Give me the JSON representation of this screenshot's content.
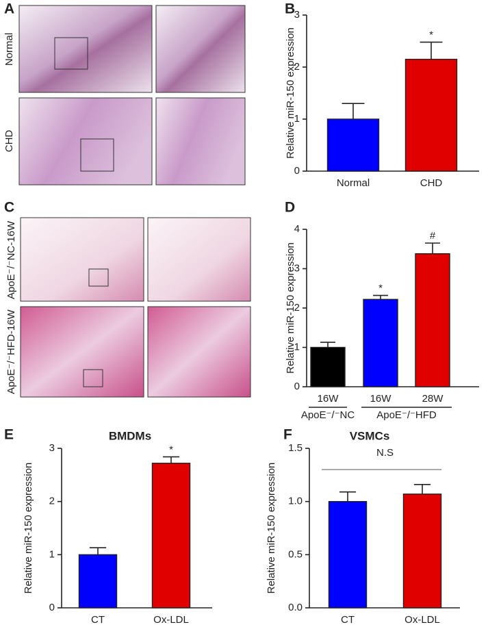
{
  "histology": {
    "panel_A": "A",
    "panel_C": "C",
    "rows_A": [
      "Normal",
      "CHD"
    ],
    "rows_C": [
      "ApoE⁻/⁻NC-16W",
      "ApoE⁻/⁻HFD-16W"
    ]
  },
  "chart_data": [
    {
      "type": "bar",
      "panel_label": "B",
      "y_label": "Relative miR-150 expression",
      "categories": [
        "Normal",
        "CHD"
      ],
      "values": [
        1.0,
        2.15
      ],
      "errors": [
        0.3,
        0.33
      ],
      "colors": [
        "#0000ff",
        "#e00000"
      ],
      "significance": [
        null,
        "*"
      ],
      "ylim": [
        0,
        3
      ],
      "yticks": [
        0,
        1,
        2,
        3
      ]
    },
    {
      "type": "bar",
      "panel_label": "D",
      "y_label": "Relative miR-150 expression",
      "categories": [
        "16W",
        "16W",
        "28W"
      ],
      "values": [
        1.0,
        2.22,
        3.38
      ],
      "errors": [
        0.13,
        0.1,
        0.27
      ],
      "colors": [
        "#000000",
        "#0000ff",
        "#e00000"
      ],
      "significance": [
        null,
        "*",
        "#"
      ],
      "group_labels": [
        "ApoE⁻/⁻NC",
        "ApoE⁻/⁻HFD"
      ],
      "ylim": [
        0,
        4
      ],
      "yticks": [
        0,
        1,
        2,
        3,
        4
      ]
    },
    {
      "type": "bar",
      "panel_label": "E",
      "title": "BMDMs",
      "y_label": "Relative miR-150 expression",
      "categories": [
        "CT",
        "Ox-LDL"
      ],
      "values": [
        1.0,
        2.72
      ],
      "errors": [
        0.13,
        0.12
      ],
      "colors": [
        "#0000ff",
        "#e00000"
      ],
      "significance": [
        null,
        "*"
      ],
      "ylim": [
        0,
        3
      ],
      "yticks": [
        0,
        1,
        2,
        3
      ]
    },
    {
      "type": "bar",
      "panel_label": "F",
      "title": "VSMCs",
      "y_label": "Relative miR-150 expression",
      "categories": [
        "CT",
        "Ox-LDL"
      ],
      "values": [
        1.0,
        1.07
      ],
      "errors": [
        0.09,
        0.09
      ],
      "colors": [
        "#0000ff",
        "#e00000"
      ],
      "bracket_label": "N.S",
      "ylim": [
        0,
        1.5
      ],
      "yticks": [
        {
          "value": 0,
          "label": "0.0"
        },
        {
          "value": 0.5,
          "label": "0.5"
        },
        {
          "value": 1,
          "label": "1.0"
        },
        {
          "value": 1.5,
          "label": "1.5"
        }
      ]
    }
  ]
}
